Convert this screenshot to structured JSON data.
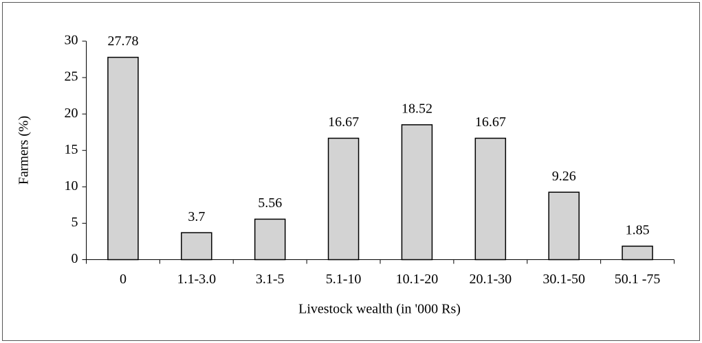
{
  "chart_data": {
    "type": "bar",
    "categories": [
      "0",
      "1.1-3.0",
      "3.1-5",
      "5.1-10",
      "10.1-20",
      "20.1-30",
      "30.1-50",
      "50.1 -75"
    ],
    "values": [
      27.78,
      3.7,
      5.56,
      16.67,
      18.52,
      16.67,
      9.26,
      1.85
    ],
    "color": "#d3d3d3",
    "ylim": [
      0,
      30
    ],
    "yticks": [
      0,
      5,
      10,
      15,
      20,
      25,
      30
    ],
    "xlabel": "Livestock wealth (in '000 Rs)",
    "ylabel": "Farmers (%)",
    "grid": false
  }
}
